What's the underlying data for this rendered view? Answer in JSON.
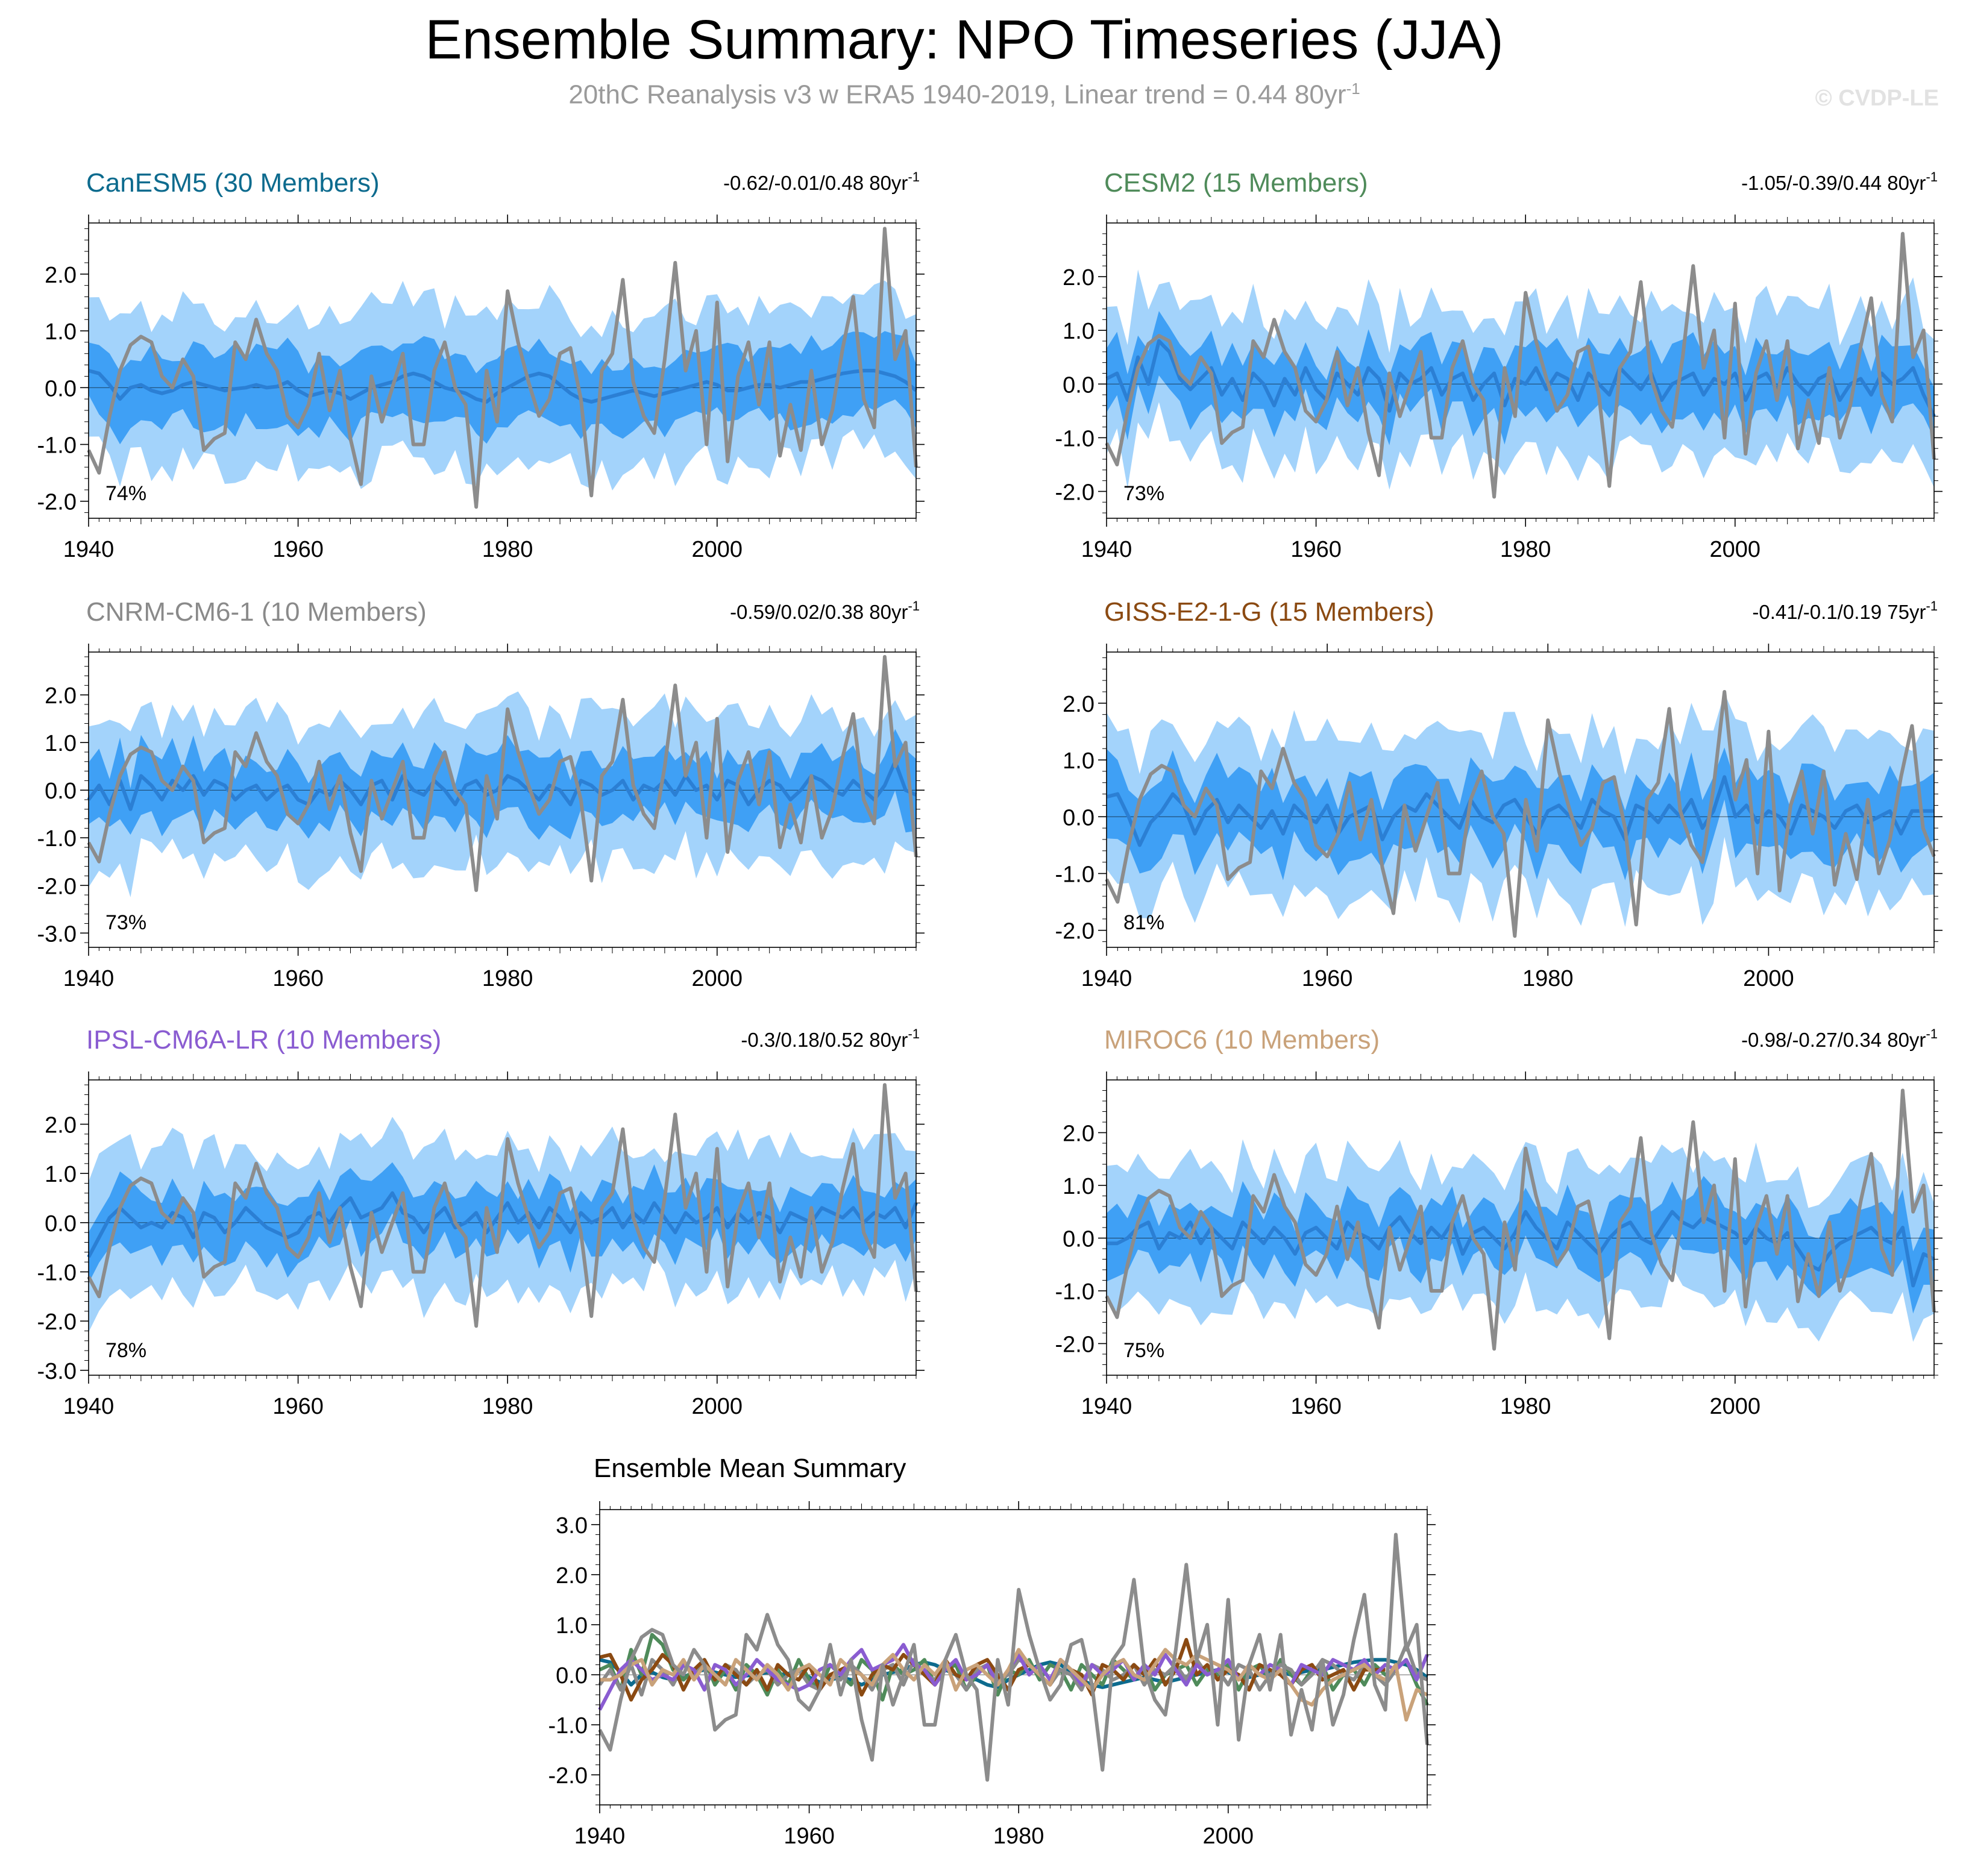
{
  "title": "Ensemble Summary: NPO Timeseries (JJA)",
  "subtitle": {
    "text": "20thC Reanalysis v3 w ERA5 1940-2019, Linear trend = 0.44 80yr",
    "superscript": "-1"
  },
  "watermark": "© CVDP-LE",
  "colors": {
    "outer_band": "#a3d3fb",
    "inner_band": "#3fa0f5",
    "ensemble_mean": "#2b7fd4",
    "observations": "#8c8c8c",
    "zero_line": "#000000"
  },
  "chart_data": [
    {
      "type": "area",
      "title": "CanESM5 (30 Members)",
      "title_color": "#0d6b8e",
      "trend": {
        "text": "-0.62/-0.01/0.48 80yr",
        "superscript": "-1"
      },
      "pattern_correlation": "74%",
      "xlim": [
        1940,
        2019
      ],
      "ylim": [
        -2.3,
        2.9
      ],
      "xticks": [
        "1940",
        "1960",
        "1980",
        "2000"
      ],
      "yticks": [
        "-2.0",
        "-1.0",
        "0.0",
        "1.0",
        "2.0"
      ],
      "ytick_values": [
        -2,
        -1,
        0,
        1,
        2
      ],
      "mean_series": [
        0.3,
        0.25,
        0.05,
        -0.2,
        0.0,
        0.05,
        -0.05,
        -0.1,
        -0.05,
        0.05,
        0.1,
        0.05,
        0.0,
        -0.05,
        -0.02,
        0.0,
        0.05,
        0.0,
        0.02,
        0.1,
        -0.05,
        -0.15,
        -0.1,
        -0.05,
        -0.1,
        -0.2,
        -0.1,
        0.0,
        0.05,
        0.1,
        0.2,
        0.25,
        0.2,
        0.1,
        0.0,
        -0.05,
        -0.1,
        -0.2,
        -0.25,
        -0.1,
        0.0,
        0.1,
        0.2,
        0.25,
        0.2,
        0.05,
        -0.1,
        -0.2,
        -0.25,
        -0.2,
        -0.15,
        -0.1,
        -0.05,
        -0.1,
        -0.15,
        -0.1,
        -0.05,
        0.0,
        0.05,
        0.1,
        0.05,
        -0.05,
        -0.05,
        0.0,
        0.05,
        0.05,
        0.0,
        0.05,
        0.1,
        0.1,
        0.15,
        0.2,
        0.25,
        0.28,
        0.3,
        0.3,
        0.25,
        0.2,
        0.1,
        -0.05
      ],
      "inner_width": 0.65,
      "outer_width": 1.35
    },
    {
      "type": "area",
      "title": "CESM2 (15 Members)",
      "title_color": "#4f8b5a",
      "trend": {
        "text": "-1.05/-0.39/0.44 80yr",
        "superscript": "-1"
      },
      "pattern_correlation": "73%",
      "xlim": [
        1940,
        2019
      ],
      "ylim": [
        -2.5,
        3.0
      ],
      "xticks": [
        "1940",
        "1960",
        "1980",
        "2000"
      ],
      "yticks": [
        "-2.0",
        "-1.0",
        "0.0",
        "1.0",
        "2.0"
      ],
      "ytick_values": [
        -2,
        -1,
        0,
        1,
        2
      ],
      "mean_series": [
        0.1,
        0.2,
        -0.3,
        0.5,
        0.0,
        0.8,
        0.6,
        0.1,
        -0.1,
        0.1,
        0.3,
        -0.2,
        0.1,
        -0.3,
        0.2,
        0.0,
        -0.4,
        0.1,
        -0.2,
        0.3,
        -0.1,
        -0.3,
        0.2,
        0.0,
        -0.2,
        0.3,
        0.1,
        -0.5,
        0.2,
        0.0,
        0.1,
        0.3,
        -0.2,
        0.1,
        0.2,
        -0.3,
        0.0,
        0.2,
        -0.4,
        0.1,
        0.0,
        0.3,
        -0.1,
        0.2,
        0.1,
        -0.3,
        0.2,
        0.0,
        -0.2,
        0.3,
        0.1,
        -0.1,
        0.2,
        -0.3,
        0.0,
        0.1,
        0.2,
        -0.2,
        0.1,
        0.0,
        0.2,
        -0.3,
        0.1,
        0.2,
        -0.1,
        0.3,
        0.0,
        -0.2,
        0.1,
        0.2,
        -0.3,
        0.0,
        0.1,
        -0.2,
        0.2,
        0.0,
        0.1,
        0.3,
        -0.2,
        -0.6
      ],
      "inner_width": 0.6,
      "outer_width": 1.35
    },
    {
      "type": "area",
      "title": "CNRM-CM6-1 (10 Members)",
      "title_color": "#8a8a8a",
      "trend": {
        "text": "-0.59/0.02/0.38 80yr",
        "superscript": "-1"
      },
      "pattern_correlation": "73%",
      "xlim": [
        1940,
        2019
      ],
      "ylim": [
        -3.3,
        2.9
      ],
      "xticks": [
        "1940",
        "1960",
        "1980",
        "2000"
      ],
      "yticks": [
        "-3.0",
        "-2.0",
        "-1.0",
        "0.0",
        "1.0",
        "2.0"
      ],
      "ytick_values": [
        -3,
        -2,
        -1,
        0,
        1,
        2
      ],
      "mean_series": [
        -0.2,
        0.1,
        -0.3,
        0.2,
        -0.4,
        0.3,
        0.1,
        -0.2,
        0.2,
        0.0,
        0.3,
        -0.1,
        0.2,
        0.1,
        -0.2,
        0.0,
        0.1,
        -0.2,
        0.0,
        0.1,
        -0.2,
        -0.3,
        0.0,
        -0.1,
        0.2,
        0.0,
        -0.3,
        0.1,
        0.2,
        -0.2,
        0.3,
        0.0,
        -0.1,
        0.2,
        0.0,
        -0.3,
        0.1,
        0.2,
        -0.1,
        0.0,
        0.3,
        0.2,
        0.0,
        -0.2,
        0.1,
        0.0,
        -0.3,
        0.2,
        0.1,
        -0.1,
        0.0,
        0.2,
        -0.2,
        0.1,
        0.0,
        0.2,
        -0.1,
        0.3,
        0.0,
        0.1,
        -0.2,
        0.2,
        0.1,
        -0.3,
        0.0,
        0.2,
        0.1,
        -0.2,
        0.0,
        0.3,
        0.2,
        0.0,
        -0.1,
        0.2,
        0.0,
        -0.2,
        0.1,
        0.6,
        0.0,
        -0.1
      ],
      "inner_width": 0.7,
      "outer_width": 1.5
    },
    {
      "type": "area",
      "title": "GISS-E2-1-G (15 Members)",
      "title_color": "#8b4a12",
      "trend": {
        "text": "-0.41/-0.1/0.19 75yr",
        "superscript": "-1"
      },
      "pattern_correlation": "81%",
      "xlim": [
        1940,
        2015
      ],
      "ylim": [
        -2.3,
        2.9
      ],
      "xticks": [
        "1940",
        "1960",
        "1980",
        "2000"
      ],
      "yticks": [
        "-2.0",
        "-1.0",
        "0.0",
        "1.0",
        "2.0"
      ],
      "ytick_values": [
        -2,
        -1,
        0,
        1,
        2
      ],
      "mean_series": [
        0.35,
        0.4,
        0.0,
        -0.5,
        -0.1,
        0.1,
        0.4,
        0.2,
        -0.3,
        0.1,
        0.3,
        -0.1,
        0.2,
        0.0,
        -0.2,
        0.1,
        -0.3,
        0.2,
        0.0,
        -0.1,
        0.2,
        -0.3,
        0.0,
        0.1,
        0.2,
        -0.4,
        0.0,
        0.2,
        0.1,
        0.4,
        0.2,
        0.0,
        -0.2,
        0.3,
        0.0,
        -0.1,
        0.2,
        0.3,
        0.0,
        -0.3,
        0.1,
        0.2,
        0.0,
        -0.2,
        0.3,
        0.1,
        0.0,
        -0.4,
        0.2,
        0.1,
        -0.1,
        0.2,
        0.0,
        0.3,
        -0.2,
        0.1,
        0.7,
        0.0,
        0.2,
        -0.1,
        0.1,
        0.0,
        -0.3,
        0.2,
        0.1,
        0.0,
        -0.2,
        0.1,
        0.2,
        -0.1,
        0.0,
        0.1,
        -0.3,
        0.1,
        0.1,
        0.1
      ],
      "inner_width": 0.65,
      "outer_width": 1.4
    },
    {
      "type": "area",
      "title": "IPSL-CM6A-LR (10 Members)",
      "title_color": "#8a5cd1",
      "trend": {
        "text": "-0.3/0.18/0.52 80yr",
        "superscript": "-1"
      },
      "pattern_correlation": "78%",
      "xlim": [
        1940,
        2019
      ],
      "ylim": [
        -3.1,
        2.9
      ],
      "xticks": [
        "1940",
        "1960",
        "1980",
        "2000"
      ],
      "yticks": [
        "-3.0",
        "-2.0",
        "-1.0",
        "0.0",
        "1.0",
        "2.0"
      ],
      "ytick_values": [
        -3,
        -2,
        -1,
        0,
        1,
        2
      ],
      "mean_series": [
        -0.7,
        -0.3,
        0.1,
        0.3,
        0.1,
        -0.1,
        0.0,
        -0.1,
        0.2,
        0.1,
        -0.3,
        0.2,
        0.1,
        -0.2,
        0.0,
        0.3,
        0.1,
        -0.1,
        -0.2,
        -0.3,
        -0.2,
        0.1,
        0.2,
        0.0,
        0.3,
        0.5,
        0.1,
        0.2,
        0.3,
        0.6,
        0.2,
        0.1,
        -0.2,
        0.1,
        0.3,
        -0.1,
        0.0,
        0.2,
        -0.2,
        0.1,
        0.4,
        0.0,
        0.2,
        -0.1,
        0.3,
        0.1,
        -0.2,
        0.2,
        0.0,
        0.1,
        0.3,
        -0.1,
        0.2,
        0.0,
        0.4,
        0.1,
        -0.2,
        0.2,
        0.0,
        0.1,
        0.3,
        -0.1,
        0.2,
        0.0,
        0.2,
        0.1,
        -0.2,
        0.2,
        0.1,
        0.0,
        0.3,
        0.2,
        0.1,
        0.3,
        0.0,
        0.2,
        0.1,
        0.3,
        -0.1,
        0.4
      ],
      "inner_width": 0.65,
      "outer_width": 1.4
    },
    {
      "type": "area",
      "title": "MIROC6 (10 Members)",
      "title_color": "#c9a27a",
      "trend": {
        "text": "-0.98/-0.27/0.34 80yr",
        "superscript": "-1"
      },
      "pattern_correlation": "75%",
      "xlim": [
        1940,
        2019
      ],
      "ylim": [
        -2.6,
        3.0
      ],
      "xticks": [
        "1940",
        "1960",
        "1980",
        "2000"
      ],
      "yticks": [
        "-2.0",
        "-1.0",
        "0.0",
        "1.0",
        "2.0"
      ],
      "ytick_values": [
        -2,
        -1,
        0,
        1,
        2
      ],
      "mean_series": [
        -0.1,
        -0.1,
        0.0,
        0.2,
        0.3,
        -0.2,
        0.1,
        0.0,
        0.3,
        -0.1,
        0.2,
        0.0,
        -0.2,
        0.3,
        0.1,
        -0.1,
        0.2,
        0.0,
        -0.3,
        0.1,
        0.2,
        0.0,
        -0.2,
        0.3,
        0.1,
        0.0,
        -0.2,
        0.2,
        0.4,
        0.1,
        -0.1,
        0.2,
        0.0,
        0.3,
        -0.3,
        0.1,
        0.2,
        0.0,
        -0.2,
        0.1,
        0.5,
        0.2,
        0.0,
        -0.2,
        0.3,
        0.1,
        -0.1,
        -0.3,
        0.0,
        0.2,
        0.3,
        0.0,
        -0.1,
        0.2,
        0.5,
        0.3,
        0.2,
        0.4,
        0.3,
        0.2,
        0.1,
        -0.1,
        0.2,
        0.0,
        -0.1,
        0.1,
        -0.2,
        -0.5,
        -0.6,
        -0.3,
        -0.1,
        0.0,
        0.1,
        0.2,
        0.0,
        -0.1,
        0.2,
        -0.9,
        -0.3,
        -0.4
      ],
      "inner_width": 0.6,
      "outer_width": 1.3
    },
    {
      "type": "line",
      "title": "Ensemble Mean Summary",
      "xlim": [
        1940,
        2019
      ],
      "ylim": [
        -2.6,
        3.3
      ],
      "xticks": [
        "1940",
        "1960",
        "1980",
        "2000"
      ],
      "yticks": [
        "-2.0",
        "-1.0",
        "0.0",
        "1.0",
        "2.0",
        "3.0"
      ],
      "ytick_values": [
        -2,
        -1,
        0,
        1,
        2,
        3
      ],
      "series": [
        {
          "name": "CanESM5",
          "color": "#0d6b8e",
          "ref": 0
        },
        {
          "name": "CESM2",
          "color": "#4f8b5a",
          "ref": 1
        },
        {
          "name": "CNRM-CM6-1",
          "color": "#8a8a8a",
          "ref": 2
        },
        {
          "name": "GISS-E2-1-G",
          "color": "#8b4a12",
          "ref": 3
        },
        {
          "name": "IPSL-CM6A-LR",
          "color": "#8a5cd1",
          "ref": 4
        },
        {
          "name": "MIROC6",
          "color": "#c9a27a",
          "ref": 5
        },
        {
          "name": "20thC Reanalysis v3 w ERA5",
          "color": "#8c8c8c",
          "ref": "obs"
        }
      ]
    }
  ],
  "observations": {
    "name": "20thC Reanalysis v3 w ERA5",
    "start_year": 1940,
    "values": [
      -1.1,
      -1.5,
      -0.5,
      0.3,
      0.75,
      0.9,
      0.8,
      0.2,
      0.0,
      0.5,
      0.2,
      -1.1,
      -0.9,
      -0.8,
      0.8,
      0.5,
      1.2,
      0.6,
      0.3,
      -0.5,
      -0.7,
      -0.3,
      0.6,
      -0.4,
      0.3,
      -0.9,
      -1.7,
      0.2,
      -0.6,
      0.0,
      0.6,
      -1.0,
      -1.0,
      0.3,
      0.8,
      0.0,
      -0.3,
      -2.1,
      0.3,
      -0.6,
      1.7,
      0.8,
      0.1,
      -0.5,
      -0.2,
      0.6,
      0.7,
      -0.2,
      -1.9,
      0.3,
      0.6,
      1.9,
      0.1,
      -0.5,
      -0.8,
      0.5,
      2.2,
      0.3,
      1.0,
      -1.0,
      1.5,
      -1.3,
      0.2,
      0.8,
      -0.3,
      0.8,
      -1.2,
      -0.3,
      -1.1,
      0.3,
      -1.0,
      -0.4,
      0.7,
      1.6,
      -0.2,
      -0.7,
      2.8,
      0.5,
      1.0,
      -1.4
    ]
  }
}
